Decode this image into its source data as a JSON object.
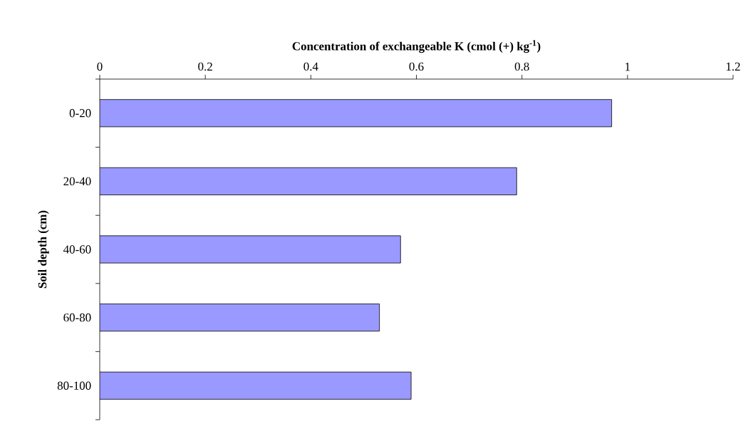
{
  "chart_data": {
    "type": "bar",
    "orientation": "horizontal",
    "xlabel": "Concentration of exchangeable K (cmol (+) kg$^{-1}$)",
    "ylabel": "Soil depth (cm)",
    "categories": [
      "0-20",
      "20-40",
      "40-60",
      "60-80",
      "80-100"
    ],
    "values": [
      0.97,
      0.79,
      0.57,
      0.53,
      0.59
    ],
    "color": "#9999ff",
    "xlim": [
      0,
      1.2
    ],
    "xticks": [
      0,
      0.2,
      0.4,
      0.6,
      0.8,
      1,
      1.2
    ]
  }
}
